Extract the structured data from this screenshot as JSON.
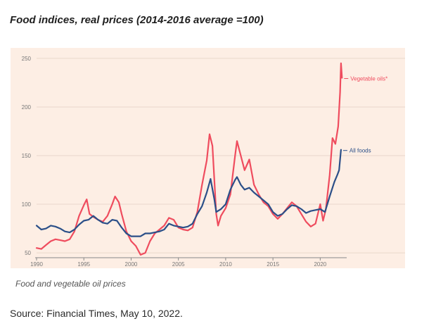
{
  "title": "Food indices, real prices (2014-2016 average =100)",
  "caption": "Food and vegetable oil prices",
  "source": "Source: Financial Times, May 10, 2022.",
  "colors": {
    "background": "#fdeee4",
    "grid": "#e9d7cb",
    "axis": "#888888",
    "vegetable_oils": "#ef4c5e",
    "all_foods": "#2b4f88"
  },
  "chart_data": {
    "type": "line",
    "xlim": [
      1990,
      2022.8
    ],
    "ylim": [
      45,
      255
    ],
    "x_ticks": [
      1990,
      1995,
      2000,
      2005,
      2010,
      2015,
      2020
    ],
    "y_ticks": [
      50,
      100,
      150,
      200,
      250
    ],
    "grid": true,
    "series": [
      {
        "name": "Vegetable oils*",
        "color": "#ef4c5e",
        "points": [
          [
            1990.0,
            55
          ],
          [
            1990.5,
            54
          ],
          [
            1991.0,
            58
          ],
          [
            1991.5,
            62
          ],
          [
            1992.0,
            64
          ],
          [
            1992.5,
            63
          ],
          [
            1993.0,
            62
          ],
          [
            1993.5,
            64
          ],
          [
            1994.0,
            72
          ],
          [
            1994.5,
            88
          ],
          [
            1995.0,
            99
          ],
          [
            1995.3,
            105
          ],
          [
            1995.6,
            90
          ],
          [
            1996.0,
            87
          ],
          [
            1996.5,
            84
          ],
          [
            1997.0,
            82
          ],
          [
            1997.5,
            88
          ],
          [
            1998.0,
            100
          ],
          [
            1998.3,
            108
          ],
          [
            1998.7,
            102
          ],
          [
            1999.0,
            90
          ],
          [
            1999.5,
            72
          ],
          [
            2000.0,
            62
          ],
          [
            2000.5,
            57
          ],
          [
            2001.0,
            48
          ],
          [
            2001.5,
            50
          ],
          [
            2002.0,
            62
          ],
          [
            2002.5,
            70
          ],
          [
            2003.0,
            74
          ],
          [
            2003.5,
            78
          ],
          [
            2004.0,
            86
          ],
          [
            2004.5,
            84
          ],
          [
            2005.0,
            76
          ],
          [
            2005.5,
            74
          ],
          [
            2006.0,
            73
          ],
          [
            2006.5,
            76
          ],
          [
            2007.0,
            92
          ],
          [
            2007.5,
            120
          ],
          [
            2008.0,
            145
          ],
          [
            2008.3,
            172
          ],
          [
            2008.6,
            160
          ],
          [
            2009.0,
            90
          ],
          [
            2009.2,
            78
          ],
          [
            2009.5,
            88
          ],
          [
            2010.0,
            96
          ],
          [
            2010.5,
            110
          ],
          [
            2011.0,
            150
          ],
          [
            2011.2,
            165
          ],
          [
            2011.6,
            150
          ],
          [
            2012.0,
            135
          ],
          [
            2012.5,
            146
          ],
          [
            2013.0,
            120
          ],
          [
            2013.5,
            110
          ],
          [
            2014.0,
            102
          ],
          [
            2014.5,
            98
          ],
          [
            2015.0,
            90
          ],
          [
            2015.5,
            85
          ],
          [
            2016.0,
            90
          ],
          [
            2016.5,
            96
          ],
          [
            2017.0,
            102
          ],
          [
            2017.5,
            98
          ],
          [
            2018.0,
            90
          ],
          [
            2018.5,
            82
          ],
          [
            2019.0,
            77
          ],
          [
            2019.5,
            80
          ],
          [
            2020.0,
            100
          ],
          [
            2020.3,
            83
          ],
          [
            2020.6,
            95
          ],
          [
            2021.0,
            130
          ],
          [
            2021.3,
            168
          ],
          [
            2021.6,
            162
          ],
          [
            2021.9,
            180
          ],
          [
            2022.1,
            215
          ],
          [
            2022.2,
            245
          ],
          [
            2022.3,
            230
          ]
        ]
      },
      {
        "name": "All foods",
        "color": "#2b4f88",
        "points": [
          [
            1990.0,
            78
          ],
          [
            1990.5,
            74
          ],
          [
            1991.0,
            75
          ],
          [
            1991.5,
            78
          ],
          [
            1992.0,
            77
          ],
          [
            1992.5,
            75
          ],
          [
            1993.0,
            72
          ],
          [
            1993.5,
            71
          ],
          [
            1994.0,
            74
          ],
          [
            1994.5,
            79
          ],
          [
            1995.0,
            83
          ],
          [
            1995.5,
            84
          ],
          [
            1996.0,
            88
          ],
          [
            1996.5,
            84
          ],
          [
            1997.0,
            81
          ],
          [
            1997.5,
            80
          ],
          [
            1998.0,
            84
          ],
          [
            1998.5,
            83
          ],
          [
            1999.0,
            76
          ],
          [
            1999.5,
            70
          ],
          [
            2000.0,
            67
          ],
          [
            2000.5,
            67
          ],
          [
            2001.0,
            67
          ],
          [
            2001.5,
            70
          ],
          [
            2002.0,
            70
          ],
          [
            2002.5,
            71
          ],
          [
            2003.0,
            72
          ],
          [
            2003.5,
            74
          ],
          [
            2004.0,
            80
          ],
          [
            2004.5,
            78
          ],
          [
            2005.0,
            77
          ],
          [
            2005.5,
            76
          ],
          [
            2006.0,
            77
          ],
          [
            2006.5,
            80
          ],
          [
            2007.0,
            90
          ],
          [
            2007.5,
            98
          ],
          [
            2008.0,
            112
          ],
          [
            2008.4,
            126
          ],
          [
            2008.8,
            105
          ],
          [
            2009.0,
            92
          ],
          [
            2009.5,
            95
          ],
          [
            2010.0,
            100
          ],
          [
            2010.5,
            115
          ],
          [
            2011.0,
            125
          ],
          [
            2011.2,
            128
          ],
          [
            2011.6,
            120
          ],
          [
            2012.0,
            115
          ],
          [
            2012.5,
            117
          ],
          [
            2013.0,
            112
          ],
          [
            2013.5,
            108
          ],
          [
            2014.0,
            104
          ],
          [
            2014.5,
            100
          ],
          [
            2015.0,
            92
          ],
          [
            2015.5,
            88
          ],
          [
            2016.0,
            90
          ],
          [
            2016.5,
            95
          ],
          [
            2017.0,
            99
          ],
          [
            2017.5,
            98
          ],
          [
            2018.0,
            95
          ],
          [
            2018.5,
            91
          ],
          [
            2019.0,
            93
          ],
          [
            2019.5,
            94
          ],
          [
            2020.0,
            95
          ],
          [
            2020.5,
            92
          ],
          [
            2021.0,
            108
          ],
          [
            2021.5,
            123
          ],
          [
            2021.8,
            130
          ],
          [
            2022.0,
            135
          ],
          [
            2022.2,
            156
          ]
        ]
      }
    ]
  }
}
